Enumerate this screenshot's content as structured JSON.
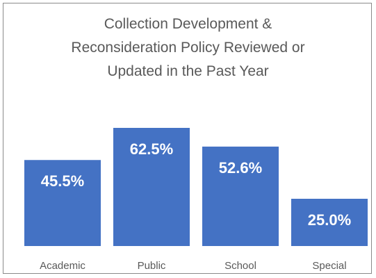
{
  "chart_data": {
    "type": "bar",
    "title_lines": [
      "Collection Development &",
      "Reconsideration Policy Reviewed or",
      "Updated in the Past Year"
    ],
    "categories": [
      "Academic",
      "Public",
      "School",
      "Special"
    ],
    "values": [
      45.5,
      62.5,
      52.6,
      25.0
    ],
    "value_labels": [
      "45.5%",
      "62.5%",
      "52.6%",
      "25.0%"
    ],
    "ylim": [
      0,
      75
    ],
    "grid": false,
    "legend": "none",
    "bar_color": "#4472c4",
    "value_label_color": "#ffffff",
    "category_label_color": "#595959"
  }
}
